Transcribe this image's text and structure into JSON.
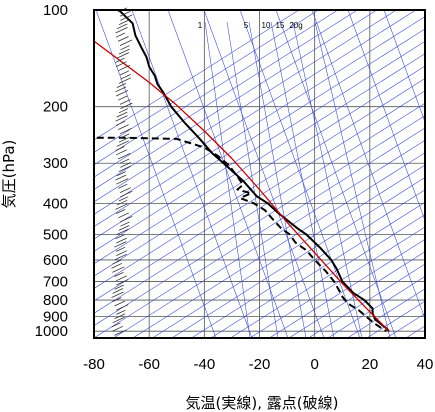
{
  "chart_data": {
    "type": "line",
    "xlabel": "気温(実線), 露点(破線)",
    "ylabel": "気圧(hPa)",
    "x_ticks": [
      -80,
      -60,
      -40,
      -20,
      0,
      20,
      40
    ],
    "y_ticks": [
      100,
      200,
      300,
      400,
      500,
      600,
      700,
      800,
      900,
      1000
    ],
    "xlim": [
      -80,
      40
    ],
    "ylim": [
      1050,
      100
    ],
    "y_scale": "log",
    "grid": true,
    "mixing_ratio_labels": [
      "1",
      "5",
      "10",
      "15",
      "20g"
    ],
    "mixing_ratio_values": [
      1,
      5,
      10,
      15,
      20
    ],
    "series": [
      {
        "style": "solid",
        "color": "#000000",
        "points": [
          [
            -71,
            100
          ],
          [
            -66,
            110
          ],
          [
            -65,
            120
          ],
          [
            -63,
            130
          ],
          [
            -61,
            140
          ],
          [
            -60,
            150
          ],
          [
            -58,
            160
          ],
          [
            -57,
            170
          ],
          [
            -55,
            180
          ],
          [
            -52,
            200
          ],
          [
            -47,
            225
          ],
          [
            -42,
            250
          ],
          [
            -37,
            280
          ],
          [
            -33,
            300
          ],
          [
            -26,
            340
          ],
          [
            -21,
            380
          ],
          [
            -17,
            400
          ],
          [
            -13,
            430
          ],
          [
            -6,
            480
          ],
          [
            -3,
            500
          ],
          [
            2,
            550
          ],
          [
            6,
            600
          ],
          [
            8,
            640
          ],
          [
            10,
            700
          ],
          [
            14,
            760
          ],
          [
            18,
            800
          ],
          [
            21,
            850
          ],
          [
            21,
            880
          ],
          [
            22,
            920
          ],
          [
            24,
            950
          ],
          [
            26,
            980
          ],
          [
            27,
            1000
          ]
        ]
      },
      {
        "style": "dashed",
        "color": "#000000",
        "points": [
          [
            -79,
            250
          ],
          [
            -69,
            250
          ],
          [
            -50,
            252
          ],
          [
            -40,
            268
          ],
          [
            -35,
            285
          ],
          [
            -31,
            305
          ],
          [
            -28,
            330
          ],
          [
            -26,
            350
          ],
          [
            -28,
            362
          ],
          [
            -23,
            372
          ],
          [
            -27,
            385
          ],
          [
            -22,
            400
          ],
          [
            -18,
            420
          ],
          [
            -16,
            440
          ],
          [
            -14,
            460
          ],
          [
            -12,
            480
          ],
          [
            -9,
            500
          ],
          [
            -7,
            530
          ],
          [
            -3,
            560
          ],
          [
            0,
            600
          ],
          [
            4,
            650
          ],
          [
            7,
            700
          ],
          [
            9,
            750
          ],
          [
            10,
            780
          ],
          [
            11,
            800
          ],
          [
            13,
            830
          ],
          [
            16,
            860
          ],
          [
            18,
            890
          ],
          [
            20,
            920
          ],
          [
            22,
            950
          ],
          [
            24,
            975
          ],
          [
            26,
            1000
          ]
        ]
      },
      {
        "style": "solid",
        "color": "#cc0000",
        "points": [
          [
            -80,
            125
          ],
          [
            -70,
            145
          ],
          [
            -60,
            168
          ],
          [
            -50,
            198
          ],
          [
            -40,
            238
          ],
          [
            -30,
            290
          ],
          [
            -20,
            362
          ],
          [
            -10,
            458
          ],
          [
            0,
            570
          ],
          [
            10,
            710
          ],
          [
            20,
            870
          ],
          [
            27,
            1000
          ]
        ]
      }
    ]
  }
}
